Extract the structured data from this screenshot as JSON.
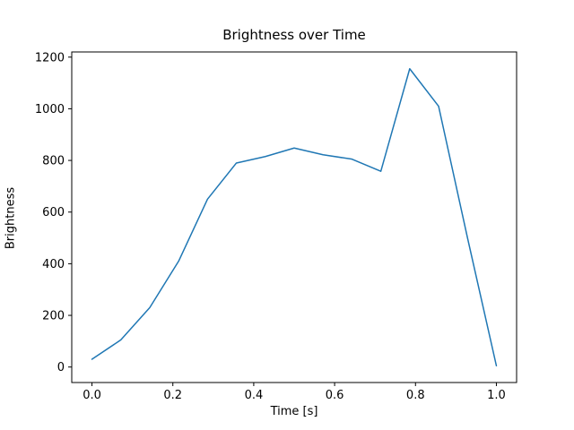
{
  "chart_data": {
    "type": "line",
    "title": "Brightness over Time",
    "xlabel": "Time [s]",
    "ylabel": "Brightness",
    "line_color": "#1f77b4",
    "line_width": 1.5,
    "grid": false,
    "legend": "none",
    "xlim": [
      -0.05,
      1.05
    ],
    "ylim": [
      -60,
      1220
    ],
    "xtick_values": [
      0.0,
      0.2,
      0.4,
      0.6,
      0.8,
      1.0
    ],
    "xtick_labels": [
      "0.0",
      "0.2",
      "0.4",
      "0.6",
      "0.8",
      "1.0"
    ],
    "ytick_values": [
      0,
      200,
      400,
      600,
      800,
      1000,
      1200
    ],
    "ytick_labels": [
      "0",
      "200",
      "400",
      "600",
      "800",
      "1000",
      "1200"
    ],
    "x": [
      0.0,
      0.0714,
      0.1429,
      0.2143,
      0.2857,
      0.3571,
      0.4286,
      0.5,
      0.5714,
      0.6429,
      0.7143,
      0.7857,
      0.8571,
      0.9286,
      1.0
    ],
    "y": [
      30,
      105,
      230,
      410,
      650,
      790,
      815,
      848,
      822,
      805,
      758,
      1155,
      1010,
      500,
      5
    ],
    "series": [
      {
        "name": "brightness",
        "values": [
          30,
          105,
          230,
          410,
          650,
          790,
          815,
          848,
          822,
          805,
          758,
          1155,
          1010,
          500,
          5
        ]
      }
    ]
  }
}
